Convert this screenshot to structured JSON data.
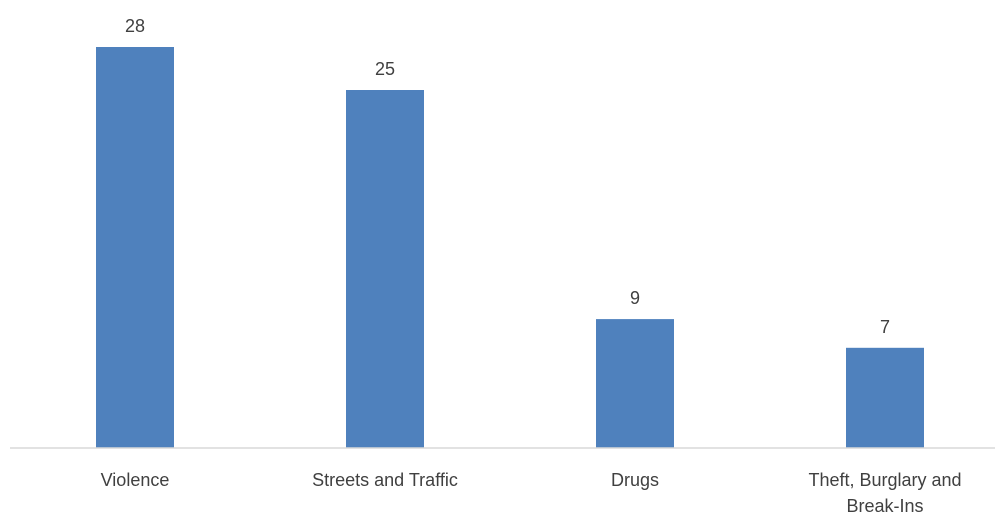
{
  "chart_data": {
    "type": "bar",
    "categories": [
      [
        "Violence"
      ],
      [
        "Streets and Traffic"
      ],
      [
        "Drugs"
      ],
      [
        "Theft, Burglary and",
        "Break-Ins"
      ]
    ],
    "values": [
      28,
      25,
      9,
      7
    ],
    "ylim": [
      0,
      28
    ],
    "grid": false,
    "legend": "none",
    "bar_color": "#4F81BD",
    "axis_color": "#D9D9D9",
    "text_color": "#404040"
  }
}
